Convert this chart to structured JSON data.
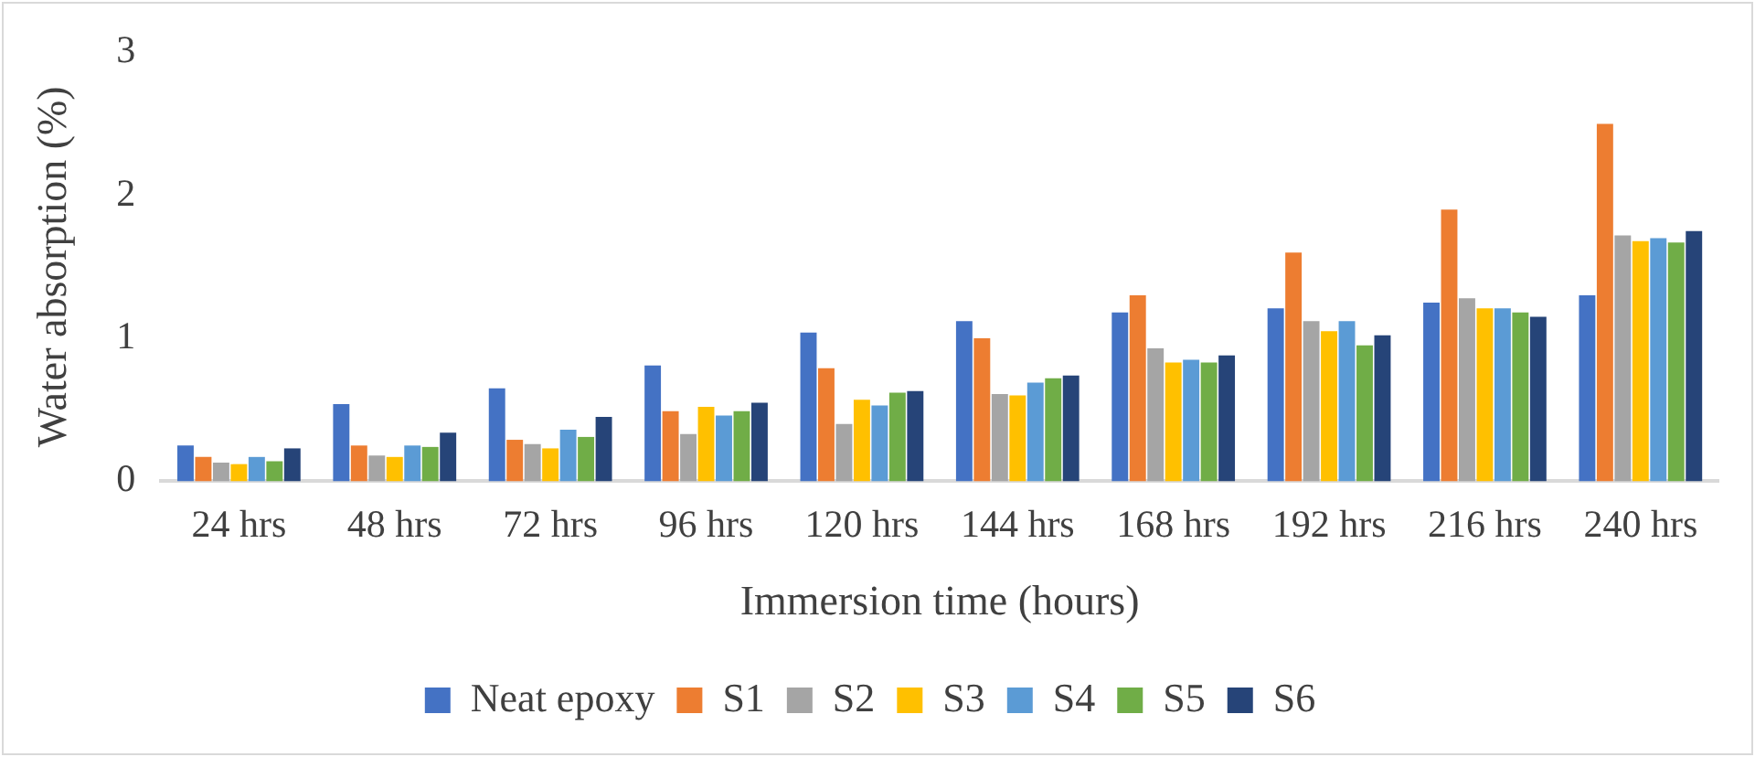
{
  "chart_data": {
    "type": "bar",
    "xlabel": "Immersion time (hours)",
    "ylabel": "Water absorption (%)",
    "categories": [
      "24 hrs",
      "48 hrs",
      "72 hrs",
      "96 hrs",
      "120 hrs",
      "144 hrs",
      "168 hrs",
      "192 hrs",
      "216 hrs",
      "240 hrs"
    ],
    "ylim": [
      0,
      3
    ],
    "yticks": [
      0,
      1,
      2,
      3
    ],
    "grid": false,
    "legend": "bottom",
    "series": [
      {
        "name": "Neat epoxy",
        "color": "#4472c4",
        "values": [
          0.25,
          0.54,
          0.65,
          0.81,
          1.04,
          1.12,
          1.18,
          1.21,
          1.25,
          1.3
        ]
      },
      {
        "name": "S1",
        "color": "#ed7d31",
        "values": [
          0.17,
          0.25,
          0.29,
          0.49,
          0.79,
          1.0,
          1.3,
          1.6,
          1.9,
          2.5
        ]
      },
      {
        "name": "S2",
        "color": "#a5a5a5",
        "values": [
          0.13,
          0.18,
          0.26,
          0.33,
          0.4,
          0.61,
          0.93,
          1.12,
          1.28,
          1.72
        ]
      },
      {
        "name": "S3",
        "color": "#ffc000",
        "values": [
          0.12,
          0.17,
          0.23,
          0.52,
          0.57,
          0.6,
          0.83,
          1.05,
          1.21,
          1.68
        ]
      },
      {
        "name": "S4",
        "color": "#5b9bd5",
        "values": [
          0.17,
          0.25,
          0.36,
          0.46,
          0.53,
          0.69,
          0.85,
          1.12,
          1.21,
          1.7
        ]
      },
      {
        "name": "S5",
        "color": "#70ad47",
        "values": [
          0.14,
          0.24,
          0.31,
          0.49,
          0.62,
          0.72,
          0.83,
          0.95,
          1.18,
          1.67
        ]
      },
      {
        "name": "S6",
        "color": "#264478",
        "values": [
          0.23,
          0.34,
          0.45,
          0.55,
          0.63,
          0.74,
          0.88,
          1.02,
          1.15,
          1.75
        ]
      }
    ]
  }
}
